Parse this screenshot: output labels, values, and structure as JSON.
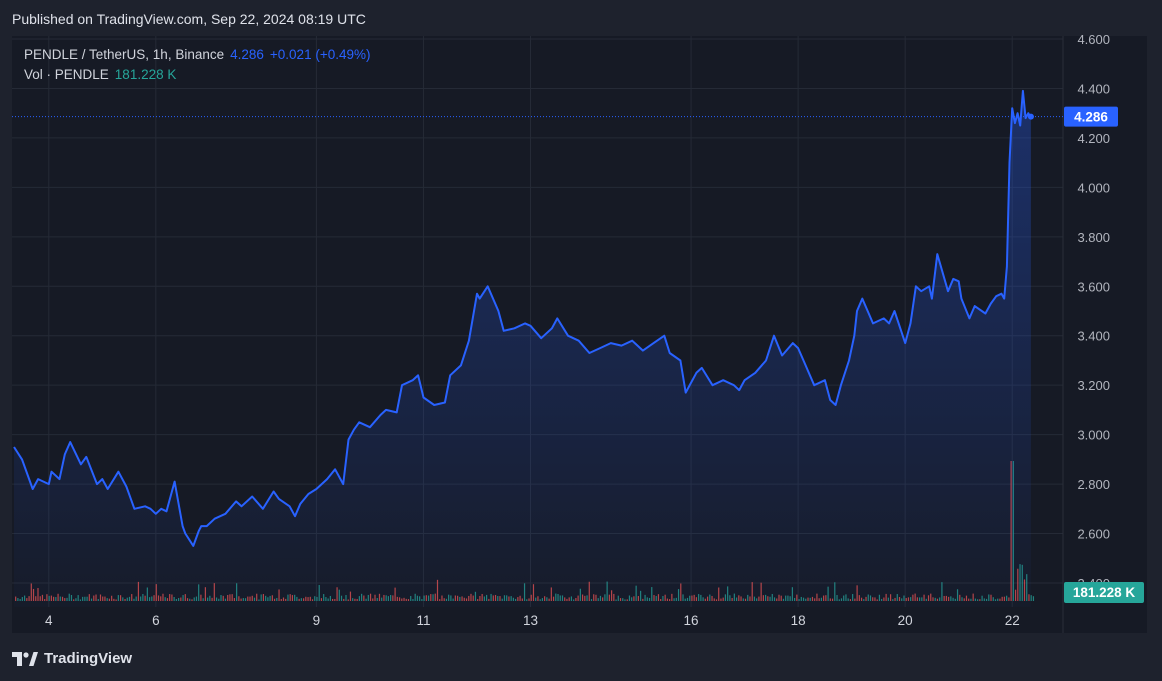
{
  "header": {
    "published": "Published on TradingView.com, Sep 22, 2024 08:19 UTC"
  },
  "legend": {
    "symbol": "PENDLE / TetherUS, 1h, Binance",
    "price": "4.286",
    "change": "+0.021 (+0.49%)",
    "volume_label": "Vol · PENDLE",
    "volume_value": "181.228 K"
  },
  "price_tag": "4.286",
  "volume_tag": "181.228 K",
  "brand": {
    "name": "TradingView"
  },
  "colors": {
    "line": "#2962ff",
    "volume_up": "#26a69a",
    "volume_down": "#ef5350",
    "price_tag_bg": "#2962ff",
    "volume_tag_bg": "#26a69a"
  },
  "chart_data": {
    "type": "area",
    "ylim": [
      2.4,
      4.6
    ],
    "y_ticks": [
      "4.600",
      "4.400",
      "4.200",
      "4.000",
      "3.800",
      "3.600",
      "3.400",
      "3.200",
      "3.000",
      "2.800",
      "2.600",
      "2.400"
    ],
    "y_tick_values": [
      4.6,
      4.4,
      4.2,
      4.0,
      3.8,
      3.6,
      3.4,
      3.2,
      3.0,
      2.8,
      2.6,
      2.4
    ],
    "x_tick_labels": [
      "4",
      "6",
      "9",
      "11",
      "13",
      "16",
      "18",
      "20",
      "22"
    ],
    "x_tick_days": [
      4,
      6,
      9,
      11,
      13,
      16,
      18,
      20,
      22
    ],
    "x_range_days": [
      3.35,
      22.65
    ],
    "last_price": 4.286,
    "series": [
      {
        "values_x_days": [
          3.35,
          3.5,
          3.7,
          3.8,
          4.0,
          4.05,
          4.2,
          4.3,
          4.4,
          4.6,
          4.7,
          4.9,
          5.0,
          5.1,
          5.3,
          5.45,
          5.6,
          5.8,
          5.9,
          6.0,
          6.1,
          6.2,
          6.35,
          6.5,
          6.55,
          6.7,
          6.8,
          6.85,
          6.95,
          7.1,
          7.3,
          7.5,
          7.6,
          7.8,
          8.0,
          8.2,
          8.3,
          8.5,
          8.6,
          8.7,
          8.85,
          9.0,
          9.2,
          9.35,
          9.5,
          9.6,
          9.7,
          9.8,
          10.0,
          10.2,
          10.3,
          10.5,
          10.6,
          10.8,
          10.9,
          11.0,
          11.2,
          11.4,
          11.5,
          11.7,
          11.85,
          12.0,
          12.05,
          12.2,
          12.4,
          12.5,
          12.7,
          12.9,
          13.0,
          13.2,
          13.4,
          13.5,
          13.7,
          13.9,
          14.1,
          14.3,
          14.5,
          14.7,
          14.9,
          15.1,
          15.3,
          15.5,
          15.6,
          15.8,
          15.9,
          16.1,
          16.2,
          16.4,
          16.6,
          16.8,
          16.9,
          17.0,
          17.2,
          17.4,
          17.55,
          17.7,
          17.9,
          18.0,
          18.1,
          18.3,
          18.5,
          18.6,
          18.7,
          18.8,
          18.95,
          19.05,
          19.1,
          19.2,
          19.4,
          19.6,
          19.7,
          19.8,
          20.0,
          20.1,
          20.2,
          20.3,
          20.45,
          20.5,
          20.6,
          20.8,
          20.9,
          21.0,
          21.05,
          21.2,
          21.3,
          21.5,
          21.6,
          21.7,
          21.8,
          21.85,
          21.9,
          21.95,
          22.0,
          22.05,
          22.1,
          22.15,
          22.2,
          22.25,
          22.3,
          22.35
        ],
        "values_y": [
          2.95,
          2.9,
          2.78,
          2.82,
          2.8,
          2.85,
          2.82,
          2.92,
          2.97,
          2.88,
          2.91,
          2.8,
          2.82,
          2.78,
          2.85,
          2.79,
          2.7,
          2.71,
          2.7,
          2.68,
          2.7,
          2.69,
          2.81,
          2.63,
          2.6,
          2.55,
          2.61,
          2.63,
          2.63,
          2.66,
          2.68,
          2.73,
          2.71,
          2.75,
          2.7,
          2.77,
          2.74,
          2.71,
          2.67,
          2.72,
          2.76,
          2.78,
          2.82,
          2.86,
          2.8,
          2.98,
          3.02,
          3.05,
          3.03,
          3.08,
          3.1,
          3.09,
          3.2,
          3.22,
          3.24,
          3.15,
          3.12,
          3.13,
          3.24,
          3.28,
          3.38,
          3.57,
          3.55,
          3.6,
          3.5,
          3.42,
          3.43,
          3.45,
          3.44,
          3.39,
          3.43,
          3.47,
          3.4,
          3.38,
          3.33,
          3.35,
          3.37,
          3.36,
          3.38,
          3.34,
          3.37,
          3.4,
          3.33,
          3.3,
          3.17,
          3.25,
          3.27,
          3.2,
          3.22,
          3.2,
          3.18,
          3.22,
          3.25,
          3.3,
          3.4,
          3.32,
          3.37,
          3.35,
          3.3,
          3.2,
          3.22,
          3.14,
          3.12,
          3.2,
          3.3,
          3.4,
          3.5,
          3.55,
          3.45,
          3.47,
          3.45,
          3.5,
          3.37,
          3.45,
          3.6,
          3.58,
          3.6,
          3.55,
          3.73,
          3.58,
          3.63,
          3.62,
          3.55,
          3.47,
          3.52,
          3.49,
          3.53,
          3.56,
          3.57,
          3.55,
          3.68,
          4.1,
          4.32,
          4.26,
          4.3,
          4.25,
          4.39,
          4.28,
          4.3,
          4.28
        ]
      }
    ],
    "volume": {
      "last_value": 181228,
      "unit": "PENDLE"
    }
  }
}
